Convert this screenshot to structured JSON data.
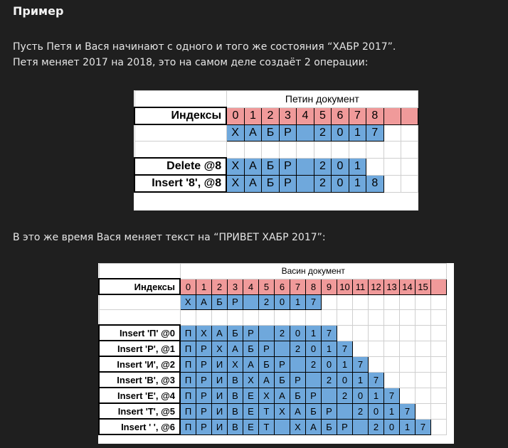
{
  "heading": "Пример",
  "paragraph1": {
    "line1": "Пусть Петя и Вася начинают с одного и того же состояния “ХАБР 2017”.",
    "line2": "Петя меняет 2017 на 2018, это на самом деле создаёт 2 операции:"
  },
  "paragraph2": "В это же время Вася меняет текст на “ПРИВЕТ ХАБР 2017”:",
  "table1": {
    "title": "Петин документ",
    "index_label": "Индексы",
    "indices": [
      "0",
      "1",
      "2",
      "3",
      "4",
      "5",
      "6",
      "7",
      "8"
    ],
    "initial": [
      "Х",
      "А",
      "Б",
      "Р",
      "",
      "2",
      "0",
      "1",
      "7"
    ],
    "operations": [
      {
        "label": "Delete @8",
        "cells": [
          "Х",
          "А",
          "Б",
          "Р",
          "",
          "2",
          "0",
          "1"
        ]
      },
      {
        "label": "Insert '8', @8",
        "cells": [
          "Х",
          "А",
          "Б",
          "Р",
          "",
          "2",
          "0",
          "1",
          "8"
        ]
      }
    ]
  },
  "table2": {
    "title": "Васин документ",
    "index_label": "Индексы",
    "indices": [
      "0",
      "1",
      "2",
      "3",
      "4",
      "5",
      "6",
      "7",
      "8",
      "9",
      "10",
      "11",
      "12",
      "13",
      "14",
      "15"
    ],
    "initial": [
      "Х",
      "А",
      "Б",
      "Р",
      "",
      "2",
      "0",
      "1",
      "7"
    ],
    "operations": [
      {
        "label": "Insert 'П' @0",
        "cells": [
          "П",
          "Х",
          "А",
          "Б",
          "Р",
          "",
          "2",
          "0",
          "1",
          "7"
        ]
      },
      {
        "label": "Insert 'Р', @1",
        "cells": [
          "П",
          "Р",
          "Х",
          "А",
          "Б",
          "Р",
          "",
          "2",
          "0",
          "1",
          "7"
        ]
      },
      {
        "label": "Insert 'И', @2",
        "cells": [
          "П",
          "Р",
          "И",
          "Х",
          "А",
          "Б",
          "Р",
          "",
          "2",
          "0",
          "1",
          "7"
        ]
      },
      {
        "label": "Insert 'В', @3",
        "cells": [
          "П",
          "Р",
          "И",
          "В",
          "Х",
          "А",
          "Б",
          "Р",
          "",
          "2",
          "0",
          "1",
          "7"
        ]
      },
      {
        "label": "Insert 'Е', @4",
        "cells": [
          "П",
          "Р",
          "И",
          "В",
          "Е",
          "Х",
          "А",
          "Б",
          "Р",
          "",
          "2",
          "0",
          "1",
          "7"
        ]
      },
      {
        "label": "Insert 'Т', @5",
        "cells": [
          "П",
          "Р",
          "И",
          "В",
          "Е",
          "Т",
          "Х",
          "А",
          "Б",
          "Р",
          "",
          "2",
          "0",
          "1",
          "7"
        ]
      },
      {
        "label": "Insert ' ', @6",
        "cells": [
          "П",
          "Р",
          "И",
          "В",
          "Е",
          "Т",
          "",
          "Х",
          "А",
          "Б",
          "Р",
          "",
          "2",
          "0",
          "1",
          "7"
        ]
      }
    ]
  }
}
